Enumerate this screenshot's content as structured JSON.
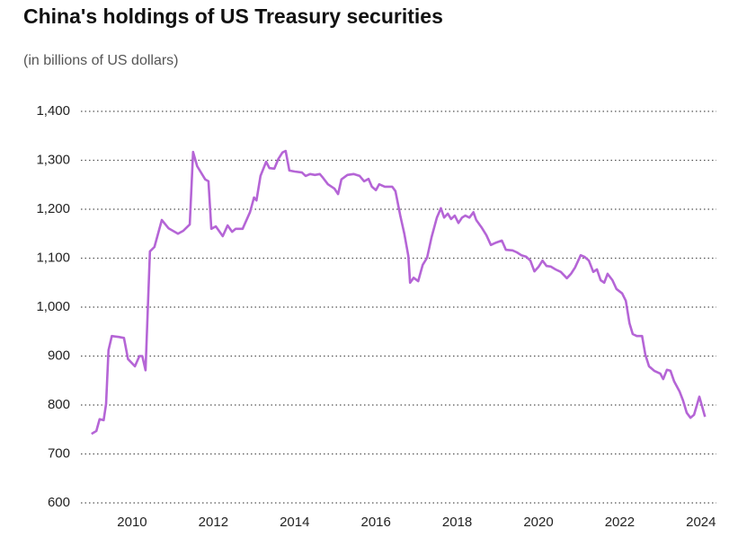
{
  "chart_data": {
    "type": "line",
    "title": "China's holdings of US Treasury securities",
    "subtitle": "(in billions of US dollars)",
    "x": [
      2009.0,
      2009.12,
      2009.2,
      2009.3,
      2009.36,
      2009.42,
      2009.5,
      2009.67,
      2009.8,
      2009.9,
      2010.07,
      2010.18,
      2010.25,
      2010.33,
      2010.44,
      2010.55,
      2010.73,
      2010.9,
      2011.13,
      2011.26,
      2011.42,
      2011.5,
      2011.6,
      2011.8,
      2011.88,
      2011.95,
      2012.06,
      2012.23,
      2012.35,
      2012.46,
      2012.55,
      2012.72,
      2012.9,
      2013.0,
      2013.06,
      2013.16,
      2013.3,
      2013.38,
      2013.5,
      2013.6,
      2013.7,
      2013.78,
      2013.87,
      2014.0,
      2014.18,
      2014.27,
      2014.38,
      2014.5,
      2014.62,
      2014.7,
      2014.82,
      2014.98,
      2015.07,
      2015.15,
      2015.3,
      2015.45,
      2015.6,
      2015.71,
      2015.82,
      2015.9,
      2016.0,
      2016.08,
      2016.22,
      2016.4,
      2016.48,
      2016.6,
      2016.7,
      2016.8,
      2016.84,
      2016.93,
      2017.04,
      2017.15,
      2017.26,
      2017.37,
      2017.5,
      2017.6,
      2017.68,
      2017.77,
      2017.85,
      2017.94,
      2018.03,
      2018.12,
      2018.2,
      2018.3,
      2018.4,
      2018.47,
      2018.6,
      2018.72,
      2018.83,
      2018.96,
      2019.1,
      2019.2,
      2019.36,
      2019.47,
      2019.58,
      2019.7,
      2019.8,
      2019.9,
      2020.0,
      2020.1,
      2020.2,
      2020.3,
      2020.42,
      2020.55,
      2020.7,
      2020.8,
      2020.9,
      2021.04,
      2021.13,
      2021.24,
      2021.35,
      2021.44,
      2021.53,
      2021.62,
      2021.7,
      2021.82,
      2021.92,
      2022.06,
      2022.15,
      2022.24,
      2022.32,
      2022.42,
      2022.55,
      2022.63,
      2022.72,
      2022.85,
      2023.0,
      2023.07,
      2023.16,
      2023.25,
      2023.34,
      2023.47,
      2023.56,
      2023.65,
      2023.74,
      2023.83,
      2023.96,
      2024.1
    ],
    "series": [
      {
        "name": "China",
        "color": "#b565d6",
        "values": [
          741,
          747,
          771,
          769,
          802,
          912,
          941,
          939,
          937,
          894,
          879,
          900,
          900,
          871,
          1114,
          1123,
          1178,
          1161,
          1150,
          1156,
          1169,
          1317,
          1288,
          1261,
          1257,
          1160,
          1165,
          1145,
          1167,
          1154,
          1160,
          1160,
          1194,
          1224,
          1218,
          1268,
          1297,
          1284,
          1283,
          1303,
          1316,
          1319,
          1279,
          1277,
          1275,
          1268,
          1272,
          1270,
          1272,
          1264,
          1251,
          1242,
          1231,
          1261,
          1270,
          1272,
          1268,
          1257,
          1262,
          1246,
          1239,
          1251,
          1246,
          1246,
          1237,
          1187,
          1150,
          1104,
          1050,
          1060,
          1053,
          1086,
          1101,
          1143,
          1183,
          1202,
          1183,
          1191,
          1180,
          1187,
          1172,
          1183,
          1187,
          1183,
          1194,
          1178,
          1163,
          1147,
          1127,
          1132,
          1136,
          1117,
          1116,
          1112,
          1106,
          1103,
          1095,
          1073,
          1082,
          1095,
          1084,
          1083,
          1077,
          1072,
          1059,
          1068,
          1081,
          1106,
          1103,
          1095,
          1072,
          1077,
          1055,
          1050,
          1068,
          1055,
          1037,
          1028,
          1013,
          967,
          945,
          941,
          941,
          903,
          879,
          870,
          864,
          853,
          872,
          870,
          848,
          828,
          809,
          784,
          774,
          780,
          817,
          776
        ]
      }
    ],
    "xlim": [
      2008.74,
      2024.38
    ],
    "xticks": [
      2010,
      2012,
      2014,
      2016,
      2018,
      2020,
      2022,
      2024
    ],
    "ylim": [
      600,
      1400
    ],
    "yticks": [
      600,
      700,
      800,
      900,
      {
        "value": 1000,
        "label": "1,000"
      },
      {
        "value": 1100,
        "label": "1,100"
      },
      {
        "value": 1200,
        "label": "1,200"
      },
      {
        "value": 1300,
        "label": "1,300"
      },
      {
        "value": 1400,
        "label": "1,400"
      }
    ],
    "grid": true
  }
}
